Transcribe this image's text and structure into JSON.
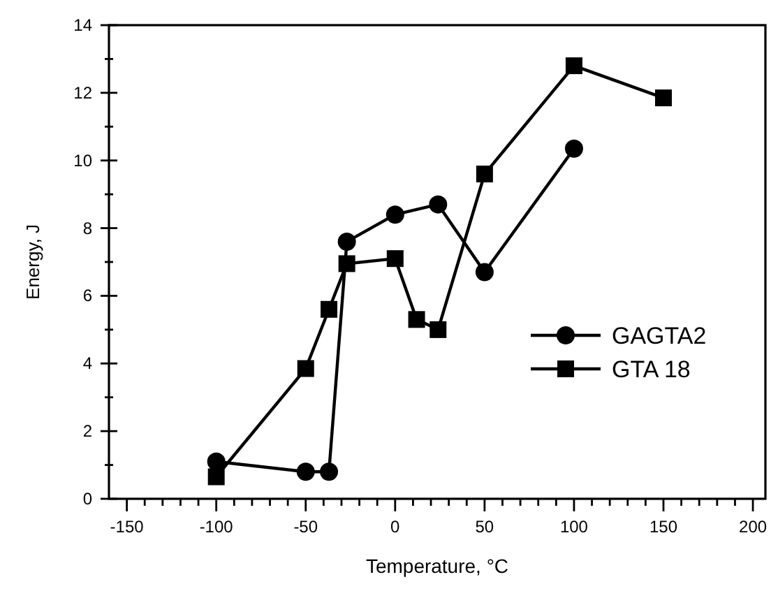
{
  "chart_data": {
    "type": "line",
    "xlabel": "Temperature, °C",
    "ylabel": "Energy, J",
    "xlim": [
      -160,
      207
    ],
    "ylim": [
      0,
      14
    ],
    "xticks": [
      -150,
      {
        "value": -140,
        "label": null
      },
      {
        "value": -130,
        "label": null
      },
      {
        "value": -120,
        "label": null
      },
      {
        "value": -110,
        "label": null
      },
      -100,
      {
        "value": -90,
        "label": null
      },
      {
        "value": -80,
        "label": null
      },
      {
        "value": -70,
        "label": null
      },
      {
        "value": -60,
        "label": null
      },
      -50,
      {
        "value": -40,
        "label": null
      },
      {
        "value": -30,
        "label": null
      },
      {
        "value": -20,
        "label": null
      },
      {
        "value": -10,
        "label": null
      },
      0,
      {
        "value": 10,
        "label": null
      },
      {
        "value": 20,
        "label": null
      },
      {
        "value": 30,
        "label": null
      },
      {
        "value": 40,
        "label": null
      },
      50,
      {
        "value": 60,
        "label": null
      },
      {
        "value": 70,
        "label": null
      },
      {
        "value": 80,
        "label": null
      },
      {
        "value": 90,
        "label": null
      },
      100,
      {
        "value": 110,
        "label": null
      },
      {
        "value": 120,
        "label": null
      },
      {
        "value": 130,
        "label": null
      },
      {
        "value": 140,
        "label": null
      },
      150,
      {
        "value": 160,
        "label": null
      },
      {
        "value": 170,
        "label": null
      },
      {
        "value": 180,
        "label": null
      },
      {
        "value": 190,
        "label": null
      },
      200
    ],
    "yticks": [
      0,
      {
        "value": 1,
        "label": null
      },
      2,
      {
        "value": 3,
        "label": null
      },
      4,
      {
        "value": 5,
        "label": null
      },
      6,
      {
        "value": 7,
        "label": null
      },
      8,
      {
        "value": 9,
        "label": null
      },
      10,
      {
        "value": 11,
        "label": null
      },
      12,
      {
        "value": 13,
        "label": null
      },
      14
    ],
    "grid": false,
    "legend": "right",
    "line_style": "solid",
    "series": [
      {
        "name": "GAGTA2",
        "color": "#000000",
        "marker": "circle",
        "x": [
          -100,
          -50,
          -37,
          -27,
          0,
          24,
          50,
          100
        ],
        "values": [
          1.1,
          0.8,
          0.8,
          7.6,
          8.4,
          8.7,
          6.7,
          10.35
        ]
      },
      {
        "name": "GTA 18",
        "color": "#000000",
        "marker": "square",
        "x": [
          -100,
          -50,
          -37,
          -27,
          0,
          12,
          24,
          50,
          100,
          150
        ],
        "values": [
          0.65,
          3.85,
          5.6,
          6.95,
          7.1,
          5.3,
          5.0,
          9.6,
          12.8,
          11.85
        ]
      }
    ]
  }
}
